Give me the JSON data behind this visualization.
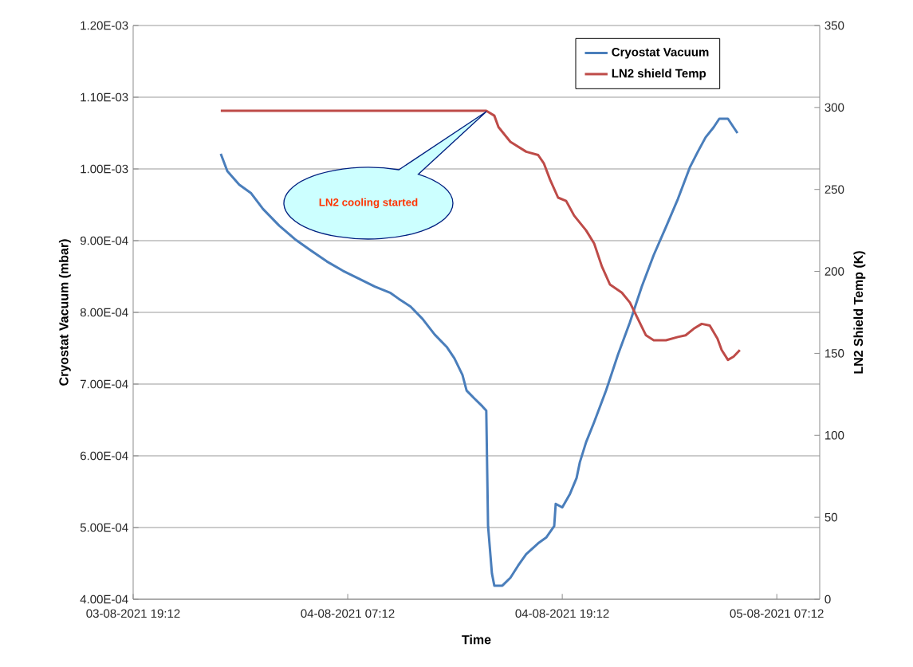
{
  "chart_data": {
    "type": "line",
    "xlabel": "Time",
    "ylabel": "Cryostat Vacuum (mbar)",
    "y2label": "LN2 Shield Temp (K)",
    "xlim": [
      "2021-08-03T19:12",
      "2021-08-05T09:36"
    ],
    "xticks": [
      {
        "value": "2021-08-03T19:12",
        "label": "03-08-2021 19:12"
      },
      {
        "value": "2021-08-04T07:12",
        "label": "04-08-2021 07:12"
      },
      {
        "value": "2021-08-04T19:12",
        "label": "04-08-2021 19:12"
      },
      {
        "value": "2021-08-05T07:12",
        "label": "05-08-2021 07:12"
      }
    ],
    "ylim": [
      0.0004,
      0.0012
    ],
    "yticks": [
      {
        "value": 0.0004,
        "label": "4.00E-04"
      },
      {
        "value": 0.0005,
        "label": "5.00E-04"
      },
      {
        "value": 0.0006,
        "label": "6.00E-04"
      },
      {
        "value": 0.0007,
        "label": "7.00E-04"
      },
      {
        "value": 0.0008,
        "label": "8.00E-04"
      },
      {
        "value": 0.0009,
        "label": "9.00E-04"
      },
      {
        "value": 0.001,
        "label": "1.00E-03"
      },
      {
        "value": 0.0011,
        "label": "1.10E-03"
      },
      {
        "value": 0.0012,
        "label": "1.20E-03"
      }
    ],
    "y2lim": [
      0,
      350
    ],
    "y2ticks": [
      0,
      50,
      100,
      150,
      200,
      250,
      300,
      350
    ],
    "grid": "y",
    "legend": "top right",
    "marker": "none",
    "line_style": "solid",
    "series": [
      {
        "name": "Cryostat Vacuum",
        "color": "#4a7ebb",
        "x": [
          "2021-08-04T00:06",
          "2021-08-04T00:28",
          "2021-08-04T01:08",
          "2021-08-04T01:48",
          "2021-08-04T02:28",
          "2021-08-04T03:22",
          "2021-08-04T04:15",
          "2021-08-04T05:09",
          "2021-08-04T06:02",
          "2021-08-04T06:56",
          "2021-08-04T07:49",
          "2021-08-04T08:43",
          "2021-08-04T09:36",
          "2021-08-04T10:03",
          "2021-08-04T10:43",
          "2021-08-04T11:23",
          "2021-08-04T12:04",
          "2021-08-04T12:44",
          "2021-08-04T13:10",
          "2021-08-04T13:37",
          "2021-08-04T13:51",
          "2021-08-04T14:17",
          "2021-08-04T14:44",
          "2021-08-04T14:57",
          "2021-08-04T15:03",
          "2021-08-04T15:16",
          "2021-08-04T15:24",
          "2021-08-04T15:51",
          "2021-08-04T16:18",
          "2021-08-04T16:44",
          "2021-08-04T17:11",
          "2021-08-04T17:51",
          "2021-08-04T18:18",
          "2021-08-04T18:45",
          "2021-08-04T18:50",
          "2021-08-04T19:12",
          "2021-08-04T19:38",
          "2021-08-04T20:00",
          "2021-08-04T20:11",
          "2021-08-04T20:32",
          "2021-08-04T20:59",
          "2021-08-04T21:39",
          "2021-08-04T22:19",
          "2021-08-04T22:59",
          "2021-08-04T23:39",
          "2021-08-05T00:19",
          "2021-08-05T01:00",
          "2021-08-05T01:40",
          "2021-08-05T02:20",
          "2021-08-05T02:47",
          "2021-08-05T03:13",
          "2021-08-05T03:40",
          "2021-08-05T03:59",
          "2021-08-05T04:07",
          "2021-08-05T04:28",
          "2021-08-05T04:47",
          "2021-08-05T05:00"
        ],
        "values": [
          0.001021,
          0.000997,
          0.000978,
          0.000966,
          0.000944,
          0.000921,
          0.000902,
          0.000886,
          0.000871,
          0.000858,
          0.000847,
          0.000836,
          0.000827,
          0.000819,
          0.000808,
          0.000791,
          0.000769,
          0.000752,
          0.000736,
          0.000713,
          0.000691,
          0.00068,
          0.000669,
          0.000663,
          0.000502,
          0.000436,
          0.000419,
          0.000419,
          0.00043,
          0.000447,
          0.000463,
          0.000478,
          0.000486,
          0.000502,
          0.000533,
          0.000528,
          0.000547,
          0.000569,
          0.000591,
          0.000619,
          0.000647,
          0.000691,
          0.000741,
          0.000786,
          0.000836,
          0.00088,
          0.000919,
          0.000958,
          0.001002,
          0.001024,
          0.001044,
          0.001058,
          0.00107,
          0.00107,
          0.00107,
          0.001058,
          0.00105
        ]
      },
      {
        "name": "LN2 shield Temp",
        "color": "#be4b48",
        "axis": "y2",
        "x": [
          "2021-08-04T00:06",
          "2021-08-04T14:57",
          "2021-08-04T15:24",
          "2021-08-04T15:38",
          "2021-08-04T16:18",
          "2021-08-04T17:11",
          "2021-08-04T17:51",
          "2021-08-04T18:10",
          "2021-08-04T18:31",
          "2021-08-04T18:58",
          "2021-08-04T19:25",
          "2021-08-04T19:52",
          "2021-08-04T20:32",
          "2021-08-04T20:59",
          "2021-08-04T21:25",
          "2021-08-04T21:52",
          "2021-08-04T22:32",
          "2021-08-04T22:59",
          "2021-08-04T23:26",
          "2021-08-04T23:53",
          "2021-08-05T00:19",
          "2021-08-05T01:00",
          "2021-08-05T01:40",
          "2021-08-05T02:06",
          "2021-08-05T02:33",
          "2021-08-05T03:00",
          "2021-08-05T03:27",
          "2021-08-05T03:53",
          "2021-08-05T04:07",
          "2021-08-05T04:28",
          "2021-08-05T04:47",
          "2021-08-05T05:08"
        ],
        "values": [
          298,
          298,
          295,
          288,
          279,
          273,
          271,
          266,
          256,
          245,
          243,
          234,
          225,
          217,
          203,
          192,
          187,
          181,
          171,
          161,
          158,
          158,
          160,
          161,
          165,
          168,
          167,
          159,
          152,
          146,
          148,
          152
        ]
      }
    ],
    "annotations": [
      "LN2 cooling started"
    ]
  }
}
